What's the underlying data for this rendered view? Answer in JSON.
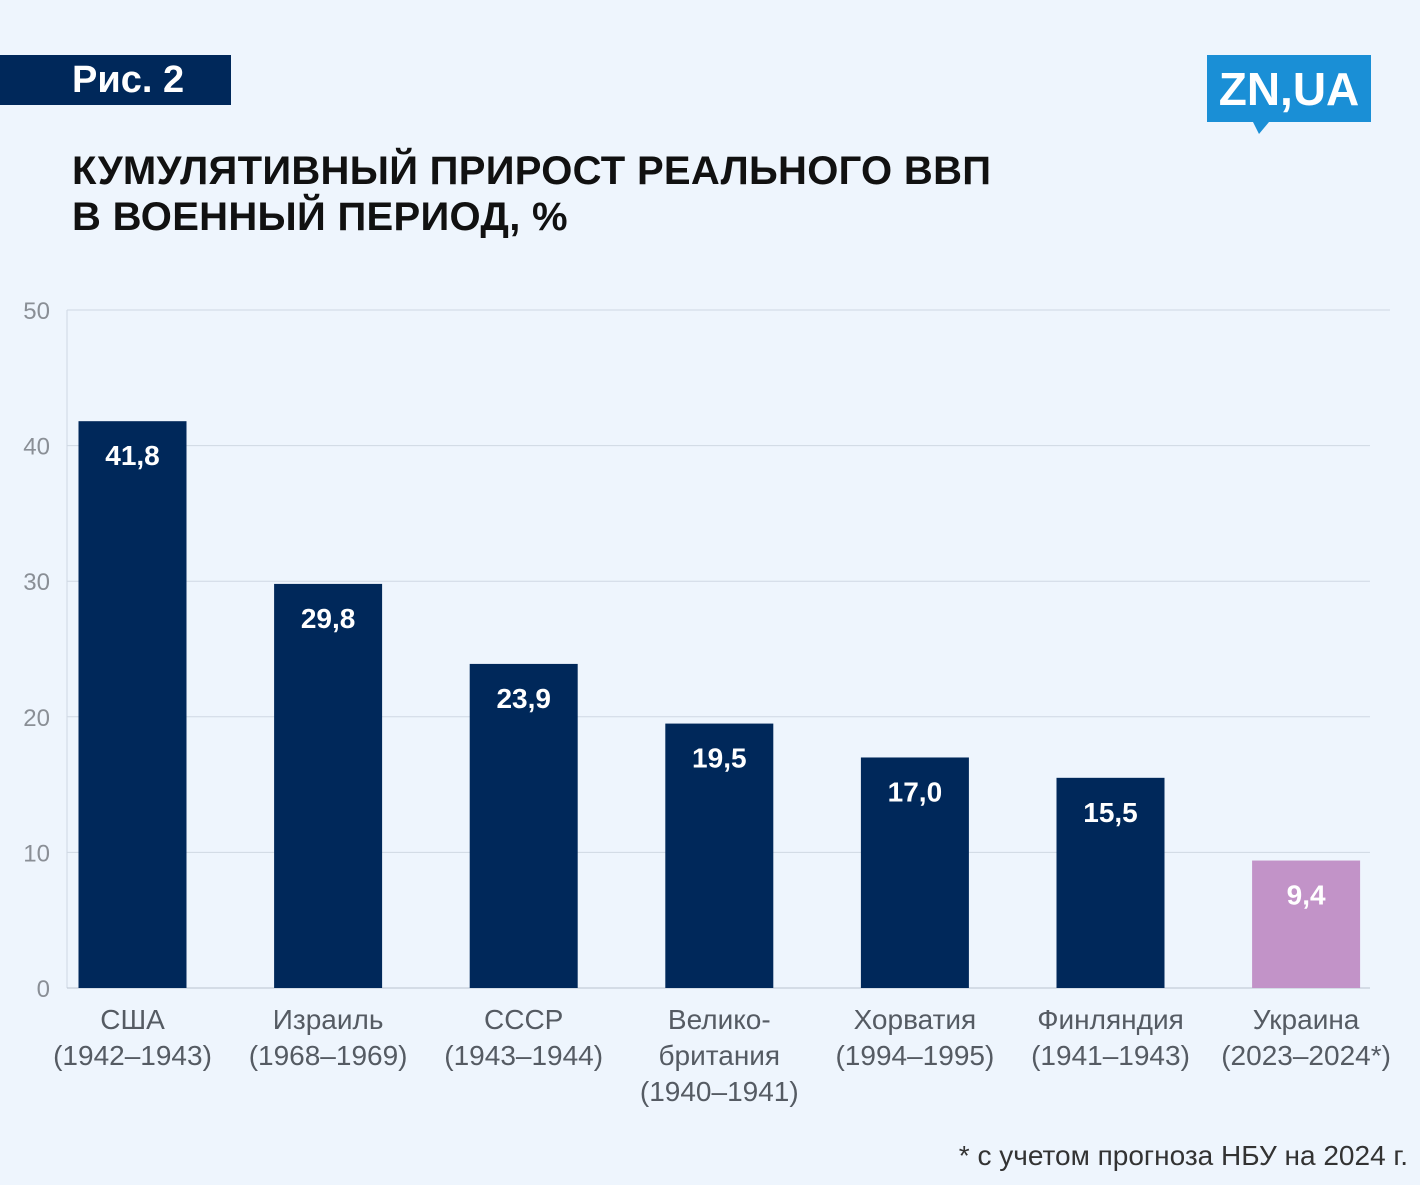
{
  "figure_label": "Рис. 2",
  "logo_text": "ZN,UA",
  "footnote": "* с учетом прогноза НБУ на 2024 г.",
  "colors": {
    "background": "#eef5fd",
    "bar": "#00285a",
    "bar_highlight": "#c293c8",
    "logo": "#1a8fd6",
    "grid": "#cfd8e3"
  },
  "chart_data": {
    "type": "bar",
    "title_lines": [
      "КУМУЛЯТИВНЫЙ ПРИРОСТ РЕАЛЬНОГО ВВП",
      "В ВОЕННЫЙ ПЕРИОД, %"
    ],
    "categories": [
      [
        "США",
        "(1942–1943)"
      ],
      [
        "Израиль",
        "(1968–1969)"
      ],
      [
        "СССР",
        "(1943–1944)"
      ],
      [
        "Велико-",
        "британия",
        "(1940–1941)"
      ],
      [
        "Хорватия",
        "(1994–1995)"
      ],
      [
        "Финляндия",
        "(1941–1943)"
      ],
      [
        "Украина",
        "(2023–2024*)"
      ]
    ],
    "values": [
      41.8,
      29.8,
      23.9,
      19.5,
      17.0,
      15.5,
      9.4
    ],
    "value_labels": [
      "41,8",
      "29,8",
      "23,9",
      "19,5",
      "17,0",
      "15,5",
      "9,4"
    ],
    "highlight_index": 6,
    "ylim": [
      0,
      50
    ],
    "yticks": [
      0,
      10,
      20,
      30,
      40,
      50
    ],
    "grid": true
  }
}
